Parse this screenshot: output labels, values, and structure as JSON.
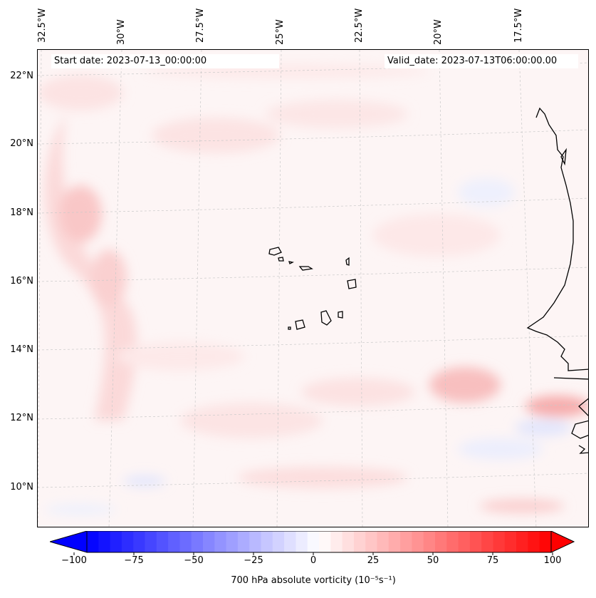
{
  "header": {
    "start_date": "Start date: 2023-07-13_00:00:00",
    "valid_date": "Valid_date: 2023-07-13T06:00:00.00"
  },
  "axes": {
    "lon_ticks": [
      "32.5°W",
      "30°W",
      "27.5°W",
      "25°W",
      "22.5°W",
      "20°W",
      "17.5°W"
    ],
    "lat_ticks": [
      "22°N",
      "20°N",
      "18°N",
      "16°N",
      "14°N",
      "12°N",
      "10°N"
    ]
  },
  "field": {
    "variable": "700 hPa absolute vorticity",
    "colormap": "bwr",
    "range": [
      -100,
      100
    ],
    "colors": {
      "negative": "#0000ff",
      "neutral": "#ffffff",
      "positive": "#ff0000"
    }
  },
  "features": [
    "Cape Verde islands",
    "West African coastline"
  ],
  "colorbar": {
    "ticks": [
      "−100",
      "−75",
      "−50",
      "−25",
      "0",
      "25",
      "50",
      "75",
      "100"
    ],
    "label": "700 hPa absolute vorticity (10⁻⁵s⁻¹)"
  }
}
